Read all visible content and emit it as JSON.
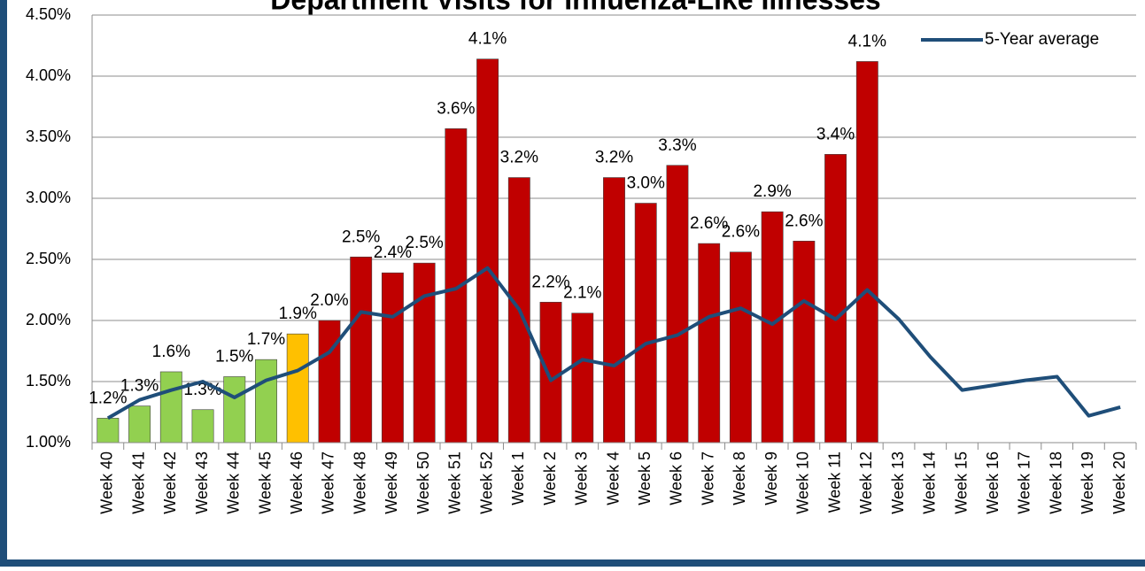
{
  "chart_data": {
    "type": "bar",
    "title": "Department Visits for Influenza-Like Illnesses",
    "categories": [
      "Week 40",
      "Week 41",
      "Week 42",
      "Week 43",
      "Week 44",
      "Week 45",
      "Week 46",
      "Week 47",
      "Week 48",
      "Week 49",
      "Week 50",
      "Week 51",
      "Week 52",
      "Week 1",
      "Week 2",
      "Week 3",
      "Week 4",
      "Week 5",
      "Week 6",
      "Week 7",
      "Week 8",
      "Week 9",
      "Week 10",
      "Week 11",
      "Week 12",
      "Week 13",
      "Week 14",
      "Week 15",
      "Week 16",
      "Week 17",
      "Week 18",
      "Week 19",
      "Week 20"
    ],
    "series": [
      {
        "type": "bar",
        "colors": [
          "#92d050",
          "#92d050",
          "#92d050",
          "#92d050",
          "#92d050",
          "#92d050",
          "#ffc000",
          "#c00000",
          "#c00000",
          "#c00000",
          "#c00000",
          "#c00000",
          "#c00000",
          "#c00000",
          "#c00000",
          "#c00000",
          "#c00000",
          "#c00000",
          "#c00000",
          "#c00000",
          "#c00000",
          "#c00000",
          "#c00000",
          "#c00000",
          "#c00000",
          "#c00000",
          "#c00000",
          "#c00000",
          "#c00000",
          "#c00000",
          "#c00000",
          "#c00000",
          "#c00000"
        ],
        "values": [
          1.2,
          1.3,
          1.58,
          1.27,
          1.54,
          1.68,
          1.89,
          2.0,
          2.52,
          2.39,
          2.47,
          3.57,
          4.14,
          3.17,
          2.15,
          2.06,
          3.17,
          2.96,
          3.27,
          2.63,
          2.56,
          2.89,
          2.65,
          3.36,
          4.12,
          null,
          null,
          null,
          null,
          null,
          null,
          null,
          null
        ],
        "value_labels": [
          "1.2%",
          "1.3%",
          "1.6%",
          "1.3%",
          "1.5%",
          "1.7%",
          "1.9%",
          "2.0%",
          "2.5%",
          "2.4%",
          "2.5%",
          "3.6%",
          "4.1%",
          "3.2%",
          "2.2%",
          "2.1%",
          "3.2%",
          "3.0%",
          "3.3%",
          "2.6%",
          "2.6%",
          "2.9%",
          "2.6%",
          "3.4%",
          "4.1%",
          null,
          null,
          null,
          null,
          null,
          null,
          null,
          null
        ]
      },
      {
        "type": "line",
        "name": "5-Year average",
        "color": "#1f4e79",
        "values": [
          1.2,
          1.35,
          1.43,
          1.5,
          1.37,
          1.51,
          1.59,
          1.74,
          2.07,
          2.03,
          2.2,
          2.26,
          2.43,
          2.09,
          1.51,
          1.68,
          1.63,
          1.81,
          1.88,
          2.03,
          2.1,
          1.97,
          2.16,
          2.01,
          2.25,
          2.01,
          1.7,
          1.43,
          1.47,
          1.51,
          1.54,
          1.22,
          1.29
        ]
      }
    ],
    "ylim": [
      1.0,
      4.5
    ],
    "yticks": [
      {
        "value": 1.0,
        "label": "1.00%"
      },
      {
        "value": 1.5,
        "label": "1.50%"
      },
      {
        "value": 2.0,
        "label": "2.00%"
      },
      {
        "value": 2.5,
        "label": "2.50%"
      },
      {
        "value": 3.0,
        "label": "3.00%"
      },
      {
        "value": 3.5,
        "label": "3.50%"
      },
      {
        "value": 4.0,
        "label": "4.00%"
      },
      {
        "value": 4.5,
        "label": "4.50%"
      }
    ],
    "grid": true,
    "legend": "top-right"
  }
}
